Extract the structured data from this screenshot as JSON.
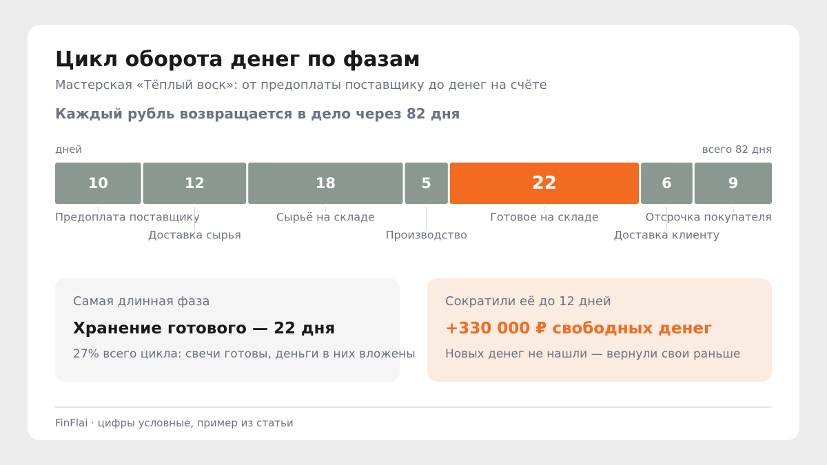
{
  "title": "Цикл оборота денег по фазам",
  "subtitle": "Мастерская «Тёплый воск»: от предоплаты поставщику до денег на счёте",
  "headline": "Каждый рубль возвращается в дело через 82 дня",
  "colors": {
    "bar": "#8a9891",
    "highlight": "#f26b21",
    "highlight_bg": "#fbece2",
    "muted_text": "#6b7280"
  },
  "chart_data": {
    "type": "bar",
    "orientation": "horizontal-stacked",
    "unit_label": "дней",
    "total_label": "всего 82 дня",
    "total": 82,
    "categories": [
      "Предоплата поставщику",
      "Доставка сырья",
      "Сырьё на складе",
      "Производство",
      "Готовое на складе",
      "Доставка клиенту",
      "Отсрочка покупателя"
    ],
    "values": [
      10,
      12,
      18,
      5,
      22,
      6,
      9
    ],
    "highlight_index": 4
  },
  "panels": {
    "left": {
      "caption": "Самая длинная фаза",
      "main": "Хранение готового — 22 дня",
      "note": "27% всего цикла: свечи готовы, деньги в них вложены"
    },
    "right": {
      "caption": "Сократили её до 12 дней",
      "main": "+330 000 ₽ свободных денег",
      "note": "Новых денег не нашли — вернули свои раньше"
    }
  },
  "footer": "FinFlai · цифры условные, пример из статьи"
}
